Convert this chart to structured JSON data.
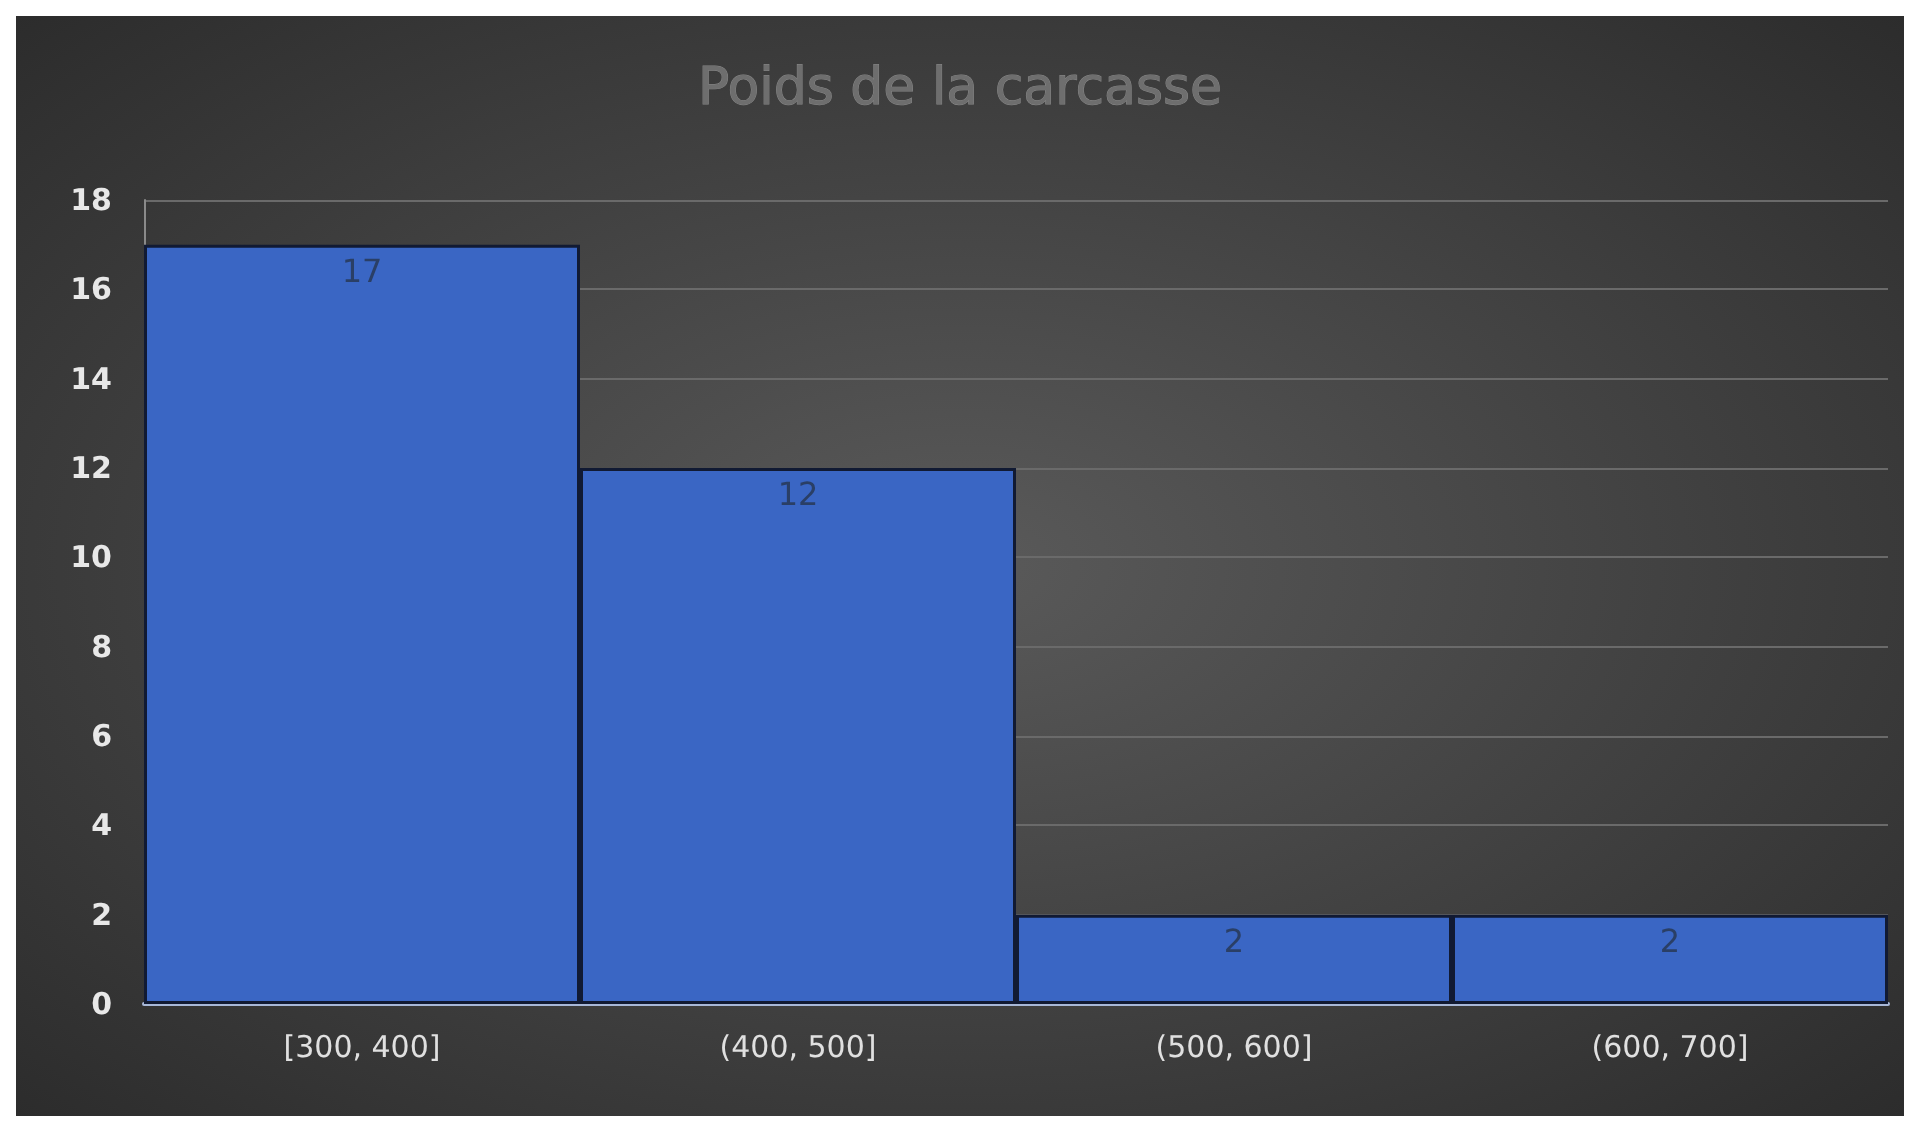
{
  "chart_data": {
    "type": "bar",
    "title": "Poids de la carcasse",
    "categories": [
      "[300, 400]",
      "(400, 500]",
      "(500, 600]",
      "(600, 700]"
    ],
    "values": [
      17,
      12,
      2,
      2
    ],
    "color": "#3a66c4",
    "ylim": [
      0,
      18
    ],
    "yticks": [
      0,
      2,
      4,
      6,
      8,
      10,
      12,
      14,
      16,
      18
    ],
    "grid": "y",
    "data_labels": true
  }
}
